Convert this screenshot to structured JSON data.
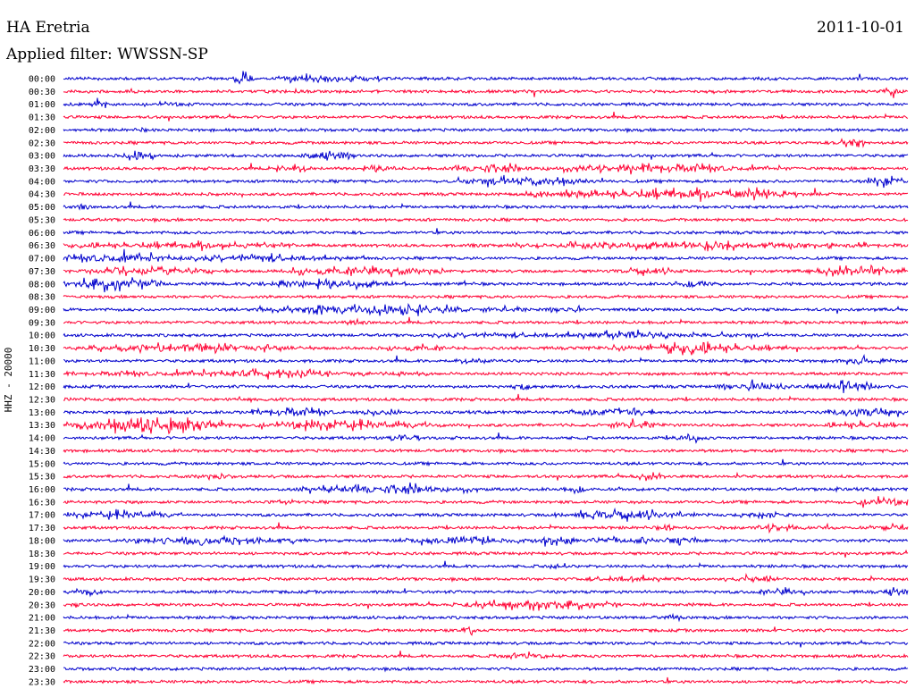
{
  "header": {
    "station": "HA Eretria",
    "date": "2011-10-01",
    "filter": "Applied filter: WWSSN-SP"
  },
  "chart_data": {
    "type": "helicorder",
    "channel_label": "HHZ - 20000",
    "colors": {
      "even_rows": "#0000cc",
      "odd_rows": "#ff0033"
    },
    "rows": [
      "00:00",
      "00:30",
      "01:00",
      "01:30",
      "02:00",
      "02:30",
      "03:00",
      "03:30",
      "04:00",
      "04:30",
      "05:00",
      "05:30",
      "06:00",
      "06:30",
      "07:00",
      "07:30",
      "08:00",
      "08:30",
      "09:00",
      "09:30",
      "10:00",
      "10:30",
      "11:00",
      "11:30",
      "12:00",
      "12:30",
      "13:00",
      "13:30",
      "14:00",
      "14:30",
      "15:00",
      "15:30",
      "16:00",
      "16:30",
      "17:00",
      "17:30",
      "18:00",
      "18:30",
      "19:00",
      "19:30",
      "20:00",
      "20:30",
      "21:00",
      "21:30",
      "22:00",
      "22:30",
      "23:00",
      "23:30"
    ],
    "activity": [
      [
        [
          0.2,
          0.23,
          10
        ],
        [
          0.26,
          0.32,
          8
        ],
        [
          0.3,
          0.4,
          6
        ]
      ],
      [
        [
          0.97,
          1,
          7
        ]
      ],
      [
        [
          0.03,
          0.06,
          8
        ],
        [
          0.09,
          0.15,
          4
        ]
      ],
      [],
      [
        [
          0.09,
          0.11,
          4
        ]
      ],
      [
        [
          0.92,
          0.95,
          10
        ]
      ],
      [
        [
          0.07,
          0.11,
          9
        ],
        [
          0.27,
          0.35,
          8
        ]
      ],
      [
        [
          0.24,
          0.3,
          7
        ],
        [
          0.35,
          0.4,
          6
        ],
        [
          0.45,
          0.55,
          8
        ],
        [
          0.55,
          0.86,
          7
        ]
      ],
      [
        [
          0.45,
          0.62,
          8
        ],
        [
          0.95,
          1,
          9
        ]
      ],
      [
        [
          0.53,
          0.63,
          6
        ],
        [
          0.6,
          0.85,
          9
        ],
        [
          0.77,
          0.88,
          8
        ]
      ],
      [
        [
          0,
          0.04,
          5
        ]
      ],
      [],
      [],
      [
        [
          0,
          0.3,
          6
        ],
        [
          0.47,
          1,
          6
        ]
      ],
      [
        [
          0,
          0.14,
          9
        ],
        [
          0.15,
          0.36,
          7
        ]
      ],
      [
        [
          0,
          0.2,
          7
        ],
        [
          0.25,
          0.45,
          8
        ],
        [
          0.65,
          0.73,
          6
        ],
        [
          0.88,
          1,
          9
        ]
      ],
      [
        [
          0,
          0.12,
          10
        ],
        [
          0.22,
          0.41,
          7
        ],
        [
          0.72,
          0.78,
          6
        ]
      ],
      [],
      [
        [
          0.22,
          0.55,
          8
        ],
        [
          0.57,
          0.62,
          6
        ]
      ],
      [
        [
          0.32,
          0.37,
          4
        ]
      ],
      [
        [
          0.43,
          0.86,
          6
        ]
      ],
      [
        [
          0.01,
          0.3,
          7
        ],
        [
          0.38,
          0.47,
          6
        ],
        [
          0.62,
          0.86,
          8
        ]
      ],
      [
        [
          0.46,
          0.51,
          5
        ],
        [
          0.91,
          0.98,
          6
        ]
      ],
      [
        [
          0,
          0.44,
          6
        ]
      ],
      [
        [
          0.53,
          0.56,
          8
        ],
        [
          0.77,
          0.86,
          7
        ],
        [
          0.87,
          0.97,
          8
        ]
      ],
      [
        [
          0.2,
          0.23,
          4
        ]
      ],
      [
        [
          0.21,
          0.33,
          7
        ],
        [
          0.35,
          0.4,
          6
        ],
        [
          0.6,
          0.7,
          8
        ],
        [
          0.9,
          1,
          9
        ]
      ],
      [
        [
          0,
          0.2,
          11
        ],
        [
          0.21,
          0.45,
          8
        ],
        [
          0.62,
          0.72,
          7
        ],
        [
          0.9,
          1,
          6
        ]
      ],
      [
        [
          0.38,
          0.43,
          6
        ],
        [
          0.72,
          0.76,
          7
        ]
      ],
      [],
      [],
      [
        [
          0.13,
          0.22,
          4
        ],
        [
          0.67,
          0.72,
          6
        ]
      ],
      [
        [
          0.26,
          0.49,
          8
        ],
        [
          0.59,
          0.62,
          7
        ],
        [
          0.9,
          0.93,
          4
        ]
      ],
      [
        [
          0.25,
          0.28,
          4
        ],
        [
          0.93,
          1,
          8
        ]
      ],
      [
        [
          0,
          0.14,
          7
        ],
        [
          0.58,
          0.75,
          8
        ],
        [
          0.8,
          0.86,
          7
        ]
      ],
      [
        [
          0.7,
          0.73,
          7
        ],
        [
          0.82,
          0.87,
          7
        ],
        [
          0.96,
          1,
          8
        ]
      ],
      [
        [
          0.06,
          0.31,
          6
        ],
        [
          0.38,
          0.55,
          7
        ],
        [
          0.55,
          0.61,
          7
        ],
        [
          0.62,
          0.7,
          7
        ],
        [
          0.71,
          0.76,
          6
        ]
      ],
      [],
      [
        [
          0.57,
          0.6,
          5
        ]
      ],
      [
        [
          0.62,
          0.72,
          7
        ],
        [
          0.78,
          0.86,
          6
        ]
      ],
      [
        [
          0,
          0.05,
          6
        ],
        [
          0.82,
          0.88,
          7
        ],
        [
          0.97,
          1,
          8
        ]
      ],
      [
        [
          0.01,
          0.03,
          7
        ],
        [
          0.46,
          0.66,
          8
        ]
      ],
      [
        [
          0.7,
          0.74,
          4
        ]
      ],
      [
        [
          0.47,
          0.49,
          6
        ]
      ],
      [],
      [
        [
          0.51,
          0.58,
          6
        ]
      ],
      [],
      []
    ]
  }
}
